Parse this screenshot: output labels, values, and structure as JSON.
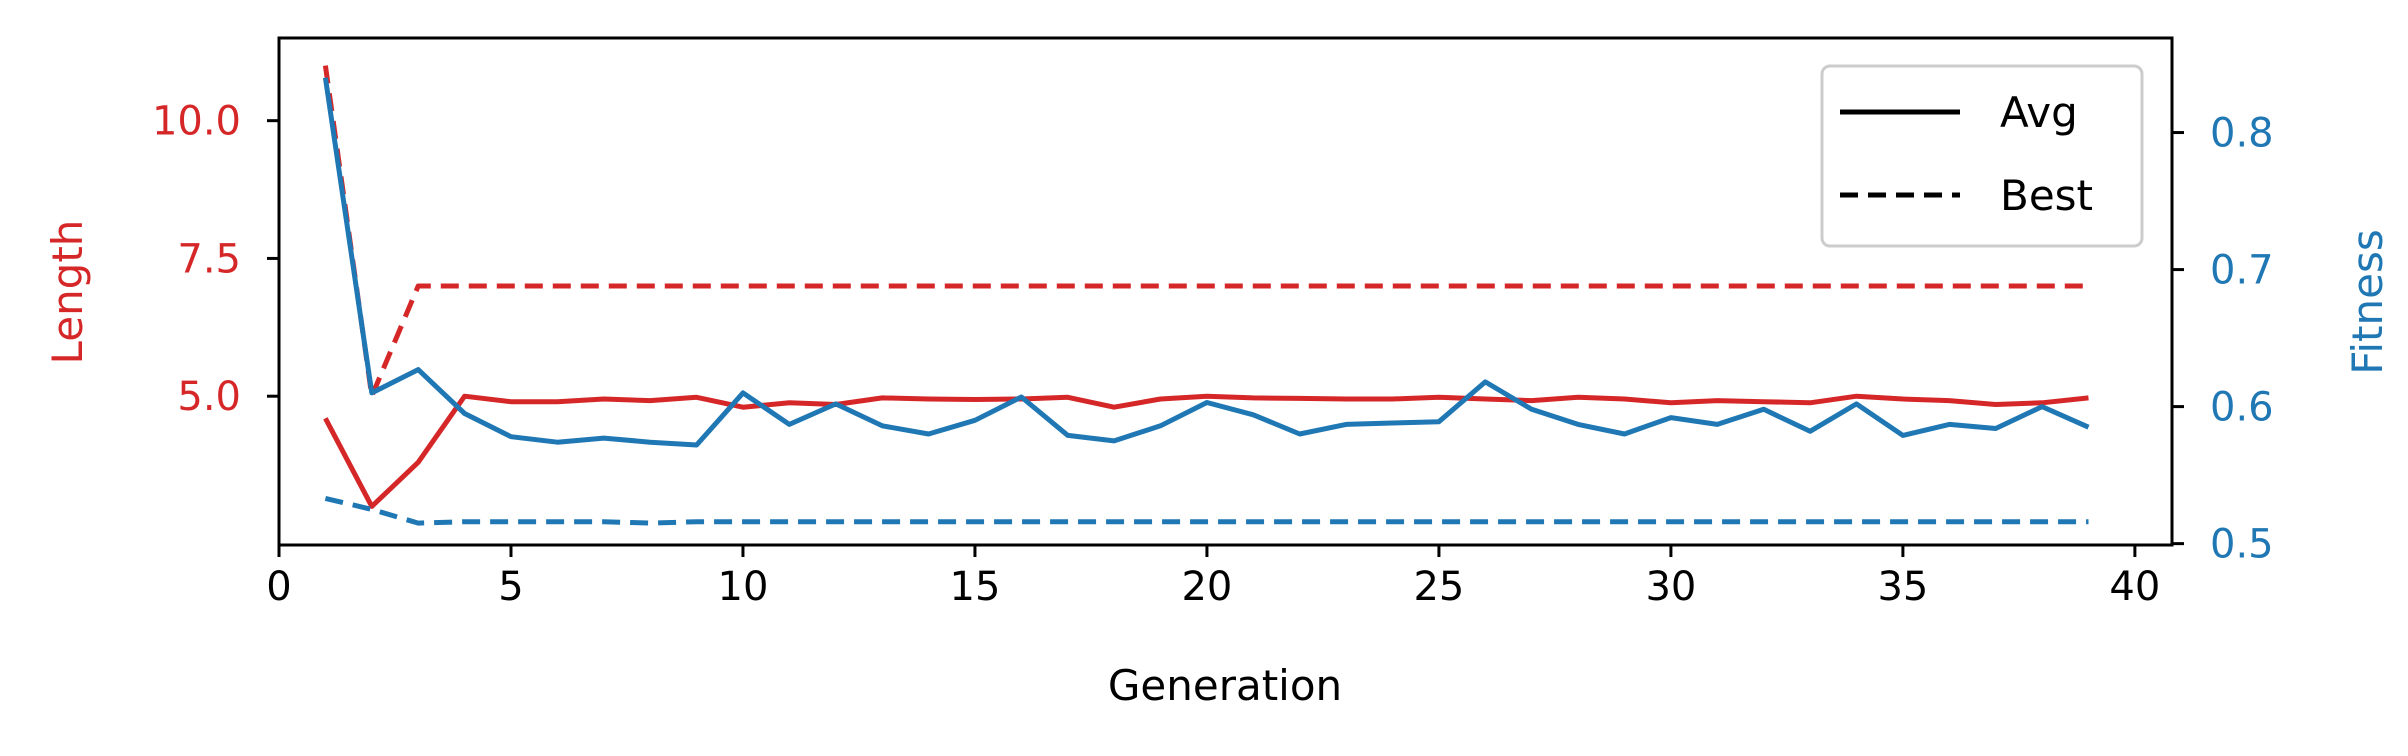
{
  "chart_data": {
    "type": "line",
    "xlabel": "Generation",
    "ylabel_left": "Length",
    "ylabel_right": "Fitness",
    "xlim": [
      0,
      40.8
    ],
    "ylim_left": [
      2.3,
      11.5
    ],
    "ylim_right": [
      0.499,
      0.869
    ],
    "x_ticks": [
      0,
      5,
      10,
      15,
      20,
      25,
      30,
      35,
      40
    ],
    "x_tick_labels": [
      "0",
      "5",
      "10",
      "15",
      "20",
      "25",
      "30",
      "35",
      "40"
    ],
    "y_left_ticks": [
      5.0,
      7.5,
      10.0
    ],
    "y_left_tick_labels": [
      "5.0",
      "7.5",
      "10.0"
    ],
    "y_right_ticks": [
      0.5,
      0.6,
      0.7,
      0.8
    ],
    "y_right_tick_labels": [
      "0.5",
      "0.6",
      "0.7",
      "0.8"
    ],
    "grid": false,
    "legend": {
      "placement": "top-right",
      "entries": [
        {
          "label": "Avg",
          "style": "solid"
        },
        {
          "label": "Best",
          "style": "dashed"
        }
      ]
    },
    "colors": {
      "length": "#d62728",
      "fitness": "#1f77b4",
      "axis": "#000000"
    },
    "x": [
      1,
      2,
      3,
      4,
      5,
      6,
      7,
      8,
      9,
      10,
      11,
      12,
      13,
      14,
      15,
      16,
      17,
      18,
      19,
      20,
      21,
      22,
      23,
      24,
      25,
      26,
      27,
      28,
      29,
      30,
      31,
      32,
      33,
      34,
      35,
      36,
      37,
      38,
      39
    ],
    "series": [
      {
        "name": "Avg",
        "metric": "Length",
        "axis": "left",
        "style": "solid",
        "values": [
          4.6,
          3.0,
          3.8,
          5.0,
          4.9,
          4.9,
          4.95,
          4.92,
          4.98,
          4.8,
          4.88,
          4.85,
          4.97,
          4.95,
          4.94,
          4.95,
          4.98,
          4.8,
          4.95,
          5.0,
          4.97,
          4.96,
          4.95,
          4.95,
          4.98,
          4.95,
          4.92,
          4.98,
          4.95,
          4.88,
          4.92,
          4.9,
          4.88,
          5.0,
          4.95,
          4.92,
          4.85,
          4.88,
          4.97
        ]
      },
      {
        "name": "Best",
        "metric": "Length",
        "axis": "left",
        "style": "dashed",
        "values": [
          11.0,
          5.0,
          7.0,
          7.0,
          7.0,
          7.0,
          7.0,
          7.0,
          7.0,
          7.0,
          7.0,
          7.0,
          7.0,
          7.0,
          7.0,
          7.0,
          7.0,
          7.0,
          7.0,
          7.0,
          7.0,
          7.0,
          7.0,
          7.0,
          7.0,
          7.0,
          7.0,
          7.0,
          7.0,
          7.0,
          7.0,
          7.0,
          7.0,
          7.0,
          7.0,
          7.0,
          7.0,
          7.0,
          7.0
        ]
      },
      {
        "name": "Avg",
        "metric": "Fitness",
        "axis": "right",
        "style": "solid",
        "values": [
          0.84,
          0.61,
          0.627,
          0.595,
          0.578,
          0.574,
          0.577,
          0.574,
          0.572,
          0.61,
          0.587,
          0.602,
          0.586,
          0.58,
          0.59,
          0.607,
          0.579,
          0.575,
          0.586,
          0.603,
          0.594,
          0.58,
          0.587,
          0.588,
          0.589,
          0.618,
          0.598,
          0.587,
          0.58,
          0.592,
          0.587,
          0.598,
          0.582,
          0.602,
          0.579,
          0.587,
          0.584,
          0.6,
          0.585
        ]
      },
      {
        "name": "Best",
        "metric": "Fitness",
        "axis": "right",
        "style": "dashed",
        "values": [
          0.533,
          0.525,
          0.515,
          0.516,
          0.516,
          0.516,
          0.516,
          0.515,
          0.516,
          0.516,
          0.516,
          0.516,
          0.516,
          0.516,
          0.516,
          0.516,
          0.516,
          0.516,
          0.516,
          0.516,
          0.516,
          0.516,
          0.516,
          0.516,
          0.516,
          0.516,
          0.516,
          0.516,
          0.516,
          0.516,
          0.516,
          0.516,
          0.516,
          0.516,
          0.516,
          0.516,
          0.516,
          0.516,
          0.516
        ]
      }
    ]
  }
}
